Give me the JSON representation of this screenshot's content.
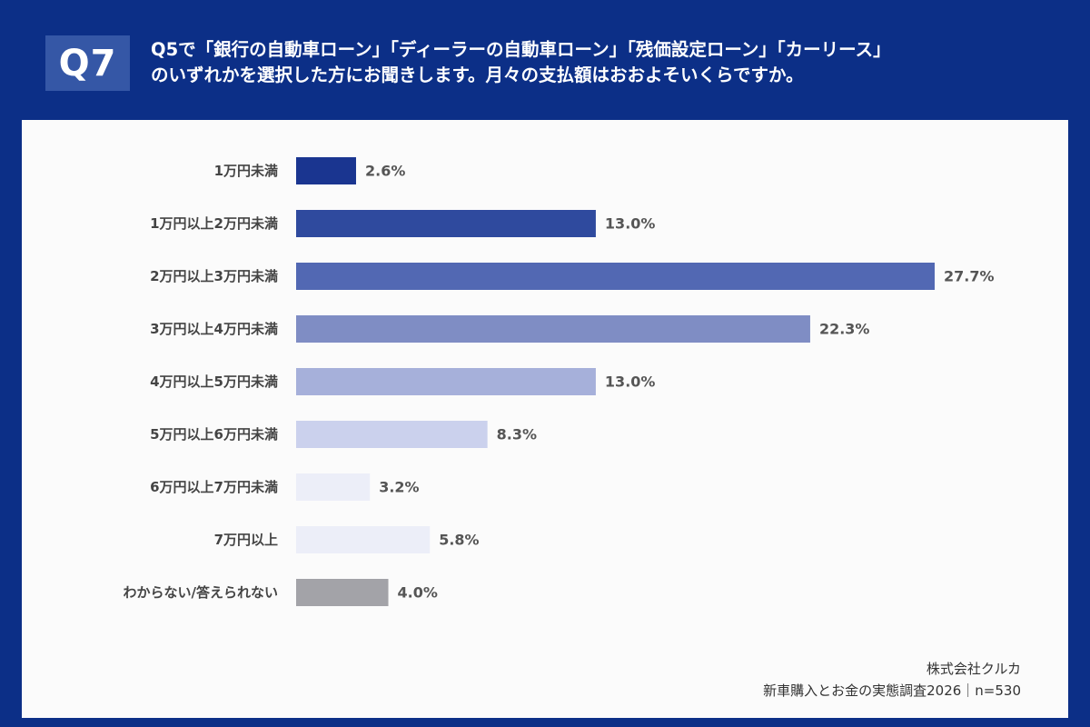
{
  "header": {
    "badge": "Q7",
    "question_line1": "Q5で「銀行の自動車ローン」「ディーラーの自動車ローン」「残価設定ローン」「カーリース」",
    "question_line2": "のいずれかを選択した方にお聞きします。月々の支払額はおおよそいくらですか。"
  },
  "footer": {
    "company": "株式会社クルカ",
    "survey": "新車購入とお金の実態調査2026｜n=530"
  },
  "colors": {
    "frame": "#0c2f87",
    "badge": "#3557a6",
    "panel": "#fbfbfb",
    "label_text": "#444444",
    "value_text": "#555555"
  },
  "chart_data": {
    "type": "bar",
    "orientation": "horizontal",
    "unit": "%",
    "xlim": [
      0,
      30
    ],
    "grid": false,
    "legend": "none",
    "categories": [
      "1万円未満",
      "1万円以上2万円未満",
      "2万円以上3万円未満",
      "3万円以上4万円未満",
      "4万円以上5万円未満",
      "5万円以上6万円未満",
      "6万円以上7万円未満",
      "7万円以上",
      "わからない/答えられない"
    ],
    "values": [
      2.6,
      13.0,
      27.7,
      22.3,
      13.0,
      8.3,
      3.2,
      5.8,
      4.0
    ],
    "value_labels": [
      "2.6%",
      "13.0%",
      "27.7%",
      "22.3%",
      "13.0%",
      "8.3%",
      "3.2%",
      "5.8%",
      "4.0%"
    ],
    "bar_colors": [
      "#1a3590",
      "#2f4a9e",
      "#5268b3",
      "#7f8dc4",
      "#a6b0da",
      "#cbd1ed",
      "#eceef8",
      "#eceef8",
      "#a3a3a8"
    ]
  }
}
